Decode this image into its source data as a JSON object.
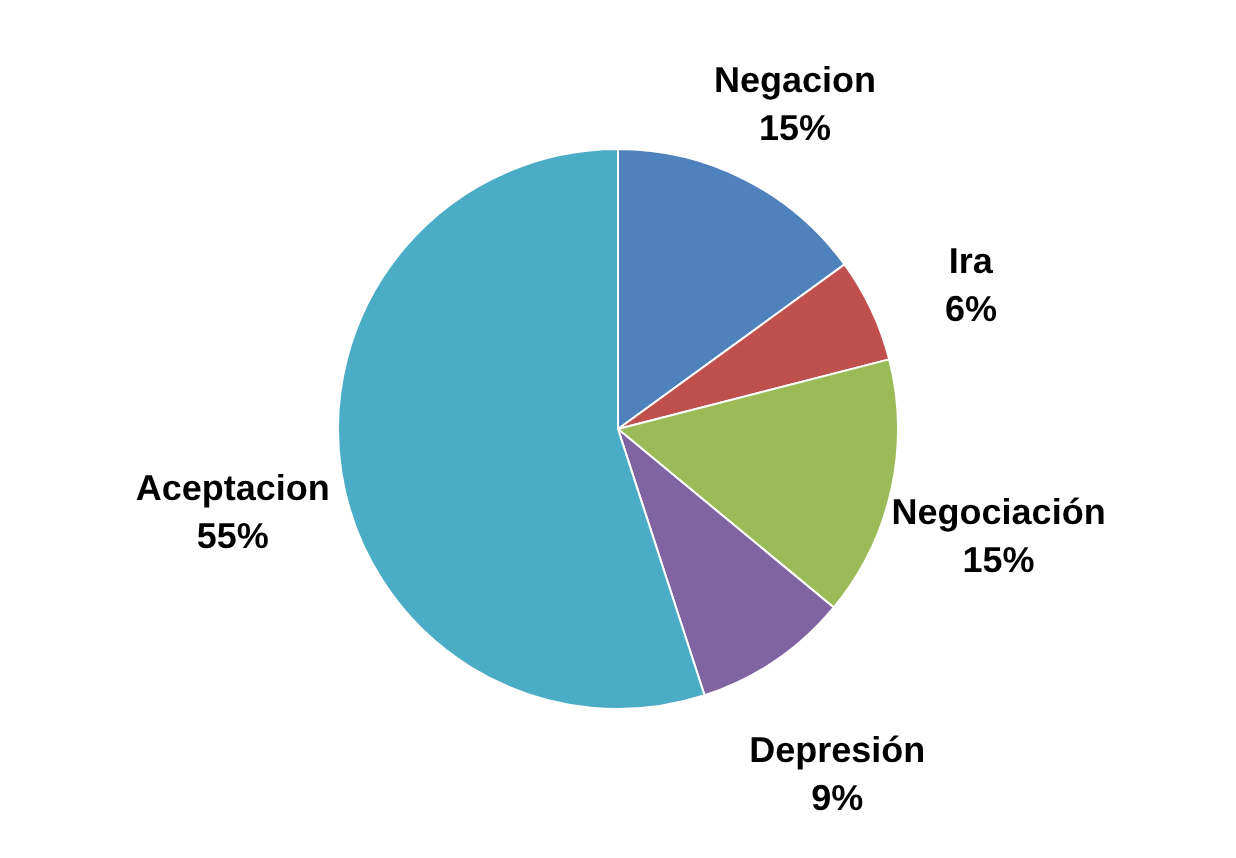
{
  "chart_data": {
    "type": "pie",
    "categories": [
      "Negacion",
      "Ira",
      "Negociación",
      "Depresión",
      "Aceptacion"
    ],
    "values": [
      15,
      6,
      15,
      9,
      55
    ],
    "value_labels": [
      "15%",
      "6%",
      "15%",
      "9%",
      "55%"
    ],
    "colors": [
      "#4f81bd",
      "#c0504d",
      "#9bbb59",
      "#8064a2",
      "#4bacc6"
    ]
  }
}
